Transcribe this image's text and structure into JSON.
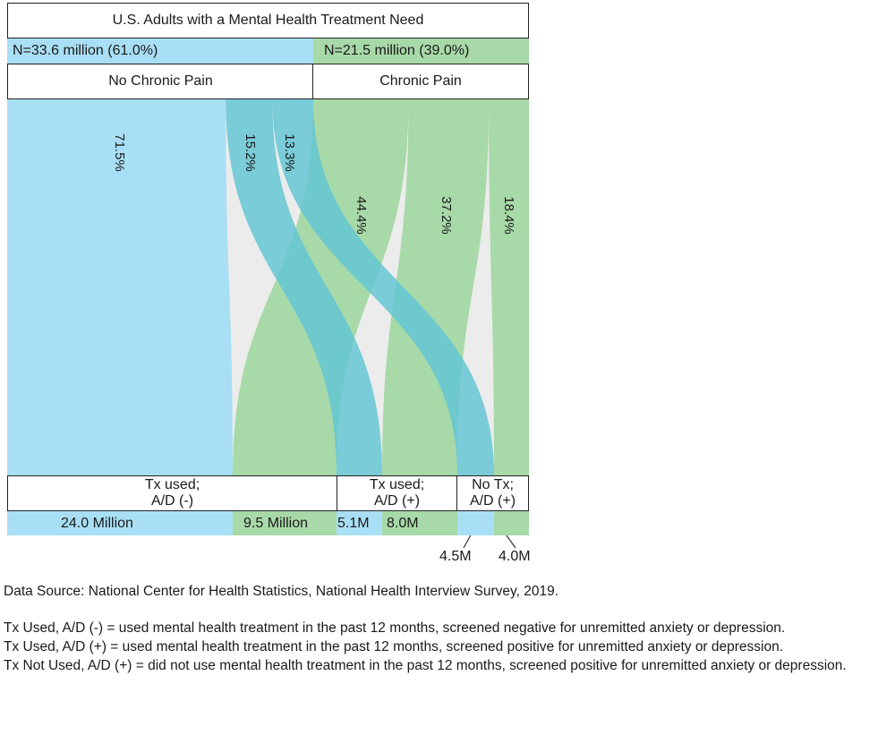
{
  "chart_data": {
    "type": "sankey",
    "title": "U.S. Adults with a Mental Health Treatment Need",
    "sources": [
      {
        "name": "No Chronic Pain",
        "label": "N=33.6 million (61.0%)",
        "value_millions": 33.6,
        "share_pct": 61.0,
        "color": "#a9dff5"
      },
      {
        "name": "Chronic Pain",
        "label": "N=21.5 million (39.0%)",
        "value_millions": 21.5,
        "share_pct": 39.0,
        "color": "#a8d9a8"
      }
    ],
    "targets": [
      {
        "name": "Tx used;\nA/D (-)",
        "line1": "Tx used;",
        "line2": "A/D (-)"
      },
      {
        "name": "Tx used;\nA/D (+)",
        "line1": "Tx used;",
        "line2": "A/D (+)"
      },
      {
        "name": "No Tx;\nA/D (+)",
        "line1": "No Tx;",
        "line2": "A/D (+)"
      }
    ],
    "flows": [
      {
        "source": "No Chronic Pain",
        "target": "Tx used;\nA/D (-)",
        "pct": "71.5%",
        "value_label": "24.0 Million",
        "value_millions": 24.0
      },
      {
        "source": "No Chronic Pain",
        "target": "Tx used;\nA/D (+)",
        "pct": "15.2%",
        "value_label": "5.1M",
        "value_millions": 5.1
      },
      {
        "source": "No Chronic Pain",
        "target": "No Tx;\nA/D (+)",
        "pct": "13.3%",
        "value_label": "4.5M",
        "value_millions": 4.5
      },
      {
        "source": "Chronic Pain",
        "target": "Tx used;\nA/D (-)",
        "pct": "44.4%",
        "value_label": "9.5 Million",
        "value_millions": 9.5
      },
      {
        "source": "Chronic Pain",
        "target": "Tx used;\nA/D (+)",
        "pct": "37.2%",
        "value_label": "8.0M",
        "value_millions": 8.0
      },
      {
        "source": "Chronic Pain",
        "target": "No Tx;\nA/D (+)",
        "pct": "18.4%",
        "value_label": "4.0M",
        "value_millions": 4.0
      }
    ]
  },
  "notes": {
    "source": "Data Source: National Center for Health Statistics, National Health Interview Survey, 2019.",
    "def1": "Tx Used, A/D (-) = used mental health treatment in the past 12 months, screened negative for unremitted anxiety or depression.",
    "def2": "Tx Used, A/D (+) = used mental health treatment in the past 12 months, screened positive for unremitted anxiety or depression.",
    "def3": "Tx Not Used, A/D (+) = did not use mental health treatment in the past 12 months, screened positive for unremitted anxiety or depression."
  }
}
